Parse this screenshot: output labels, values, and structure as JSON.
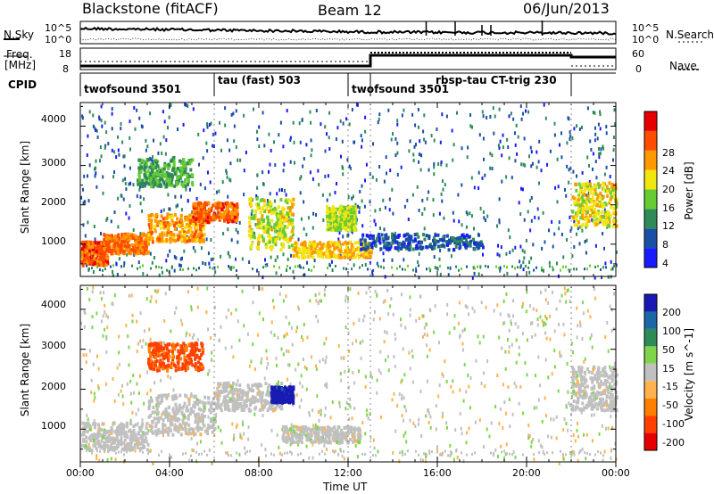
{
  "header": {
    "station": "Blackstone (fitACF)",
    "beam": "Beam 12",
    "date": "06/Jun/2013"
  },
  "side_labels": {
    "nsky": "N.Sky",
    "nsearch": "N.Search",
    "freq": "Freq.",
    "freq_unit": "[MHz]",
    "nave": "Nave",
    "cpid": "CPID"
  },
  "noise_axis": {
    "left_ticks": [
      "10^5",
      "10^0"
    ],
    "right_ticks": [
      "10^5",
      "10^0"
    ]
  },
  "freq_axis": {
    "left_ticks": [
      "18",
      "8"
    ],
    "right_ticks": [
      "60",
      "0"
    ]
  },
  "cpid_segments": [
    {
      "label": "twofsound 3501",
      "start_hour": 0,
      "end_hour": 6
    },
    {
      "label": "tau (fast) 503",
      "start_hour": 6,
      "end_hour": 12
    },
    {
      "label": "twofsound 3501",
      "start_hour": 12,
      "end_hour": 13
    },
    {
      "label": "rbsp-tau CT-trig 230",
      "start_hour": 13,
      "end_hour": 22
    }
  ],
  "x_axis": {
    "label": "Time UT",
    "ticks": [
      "00:00",
      "04:00",
      "08:00",
      "12:00",
      "16:00",
      "20:00",
      "00:00"
    ],
    "range_hours": [
      0,
      24
    ]
  },
  "chart_data": [
    {
      "type": "heatmap",
      "title": "Power",
      "ylabel": "Slant Range [km]",
      "yticks": [
        "1000",
        "2000",
        "3000",
        "4000"
      ],
      "ylim_km": [
        180,
        4600
      ],
      "colorbar_label": "Power [dB]",
      "colorbar_ticks": [
        "4",
        "8",
        "12",
        "16",
        "20",
        "24",
        "28"
      ],
      "colorbar_range": [
        0,
        32
      ],
      "colors": [
        "#1a1aff",
        "#1a4fa6",
        "#2e8b57",
        "#66cc33",
        "#f2e60f",
        "#ff9900",
        "#ff4d00",
        "#e60000"
      ],
      "echo_regions": [
        {
          "t0": 0.0,
          "t1": 1.2,
          "r0": 500,
          "r1": 1100,
          "value": 26
        },
        {
          "t0": 1.0,
          "t1": 3.0,
          "r0": 800,
          "r1": 1300,
          "value": 24
        },
        {
          "t0": 3.0,
          "t1": 5.5,
          "r0": 1100,
          "r1": 1800,
          "value": 22
        },
        {
          "t0": 5.0,
          "t1": 7.0,
          "r0": 1600,
          "r1": 2100,
          "value": 25
        },
        {
          "t0": 2.5,
          "t1": 5.0,
          "r0": 2500,
          "r1": 3200,
          "value": 12
        },
        {
          "t0": 7.5,
          "t1": 9.5,
          "r0": 900,
          "r1": 2200,
          "value": 17
        },
        {
          "t0": 9.5,
          "t1": 13.0,
          "r0": 700,
          "r1": 1100,
          "value": 20
        },
        {
          "t0": 11.0,
          "t1": 12.3,
          "r0": 1400,
          "r1": 2000,
          "value": 16
        },
        {
          "t0": 12.5,
          "t1": 18.0,
          "r0": 900,
          "r1": 1300,
          "value": 6
        },
        {
          "t0": 22.0,
          "t1": 24.0,
          "r0": 1500,
          "r1": 2600,
          "value": 18
        }
      ]
    },
    {
      "type": "heatmap",
      "title": "Velocity",
      "ylabel": "Slant Range [km]",
      "yticks": [
        "1000",
        "2000",
        "3000",
        "4000"
      ],
      "ylim_km": [
        180,
        4600
      ],
      "colorbar_label": "Velocity [m s^-1]",
      "colorbar_ticks": [
        "200",
        "100",
        "50",
        "15",
        "-15",
        "-50",
        "-100",
        "-200"
      ],
      "colorbar_range": [
        -250,
        250
      ],
      "colors": [
        "#1a1ab3",
        "#1a66a6",
        "#2e8b57",
        "#7fd44c",
        "#c0c0c0",
        "#ffb24d",
        "#ff8000",
        "#ff4000",
        "#e60000"
      ],
      "echo_regions": [
        {
          "t0": 0.0,
          "t1": 3.0,
          "r0": 500,
          "r1": 1200,
          "value": 0
        },
        {
          "t0": 3.0,
          "t1": 6.0,
          "r0": 900,
          "r1": 1900,
          "value": 0
        },
        {
          "t0": 3.0,
          "t1": 5.5,
          "r0": 2500,
          "r1": 3200,
          "value": -150
        },
        {
          "t0": 6.0,
          "t1": 9.0,
          "r0": 1500,
          "r1": 2200,
          "value": 0
        },
        {
          "t0": 8.5,
          "t1": 9.5,
          "r0": 1700,
          "r1": 2100,
          "value": 220
        },
        {
          "t0": 9.0,
          "t1": 12.5,
          "r0": 700,
          "r1": 1100,
          "value": 0
        },
        {
          "t0": 22.0,
          "t1": 24.0,
          "r0": 1500,
          "r1": 2600,
          "value": 0
        }
      ]
    }
  ]
}
